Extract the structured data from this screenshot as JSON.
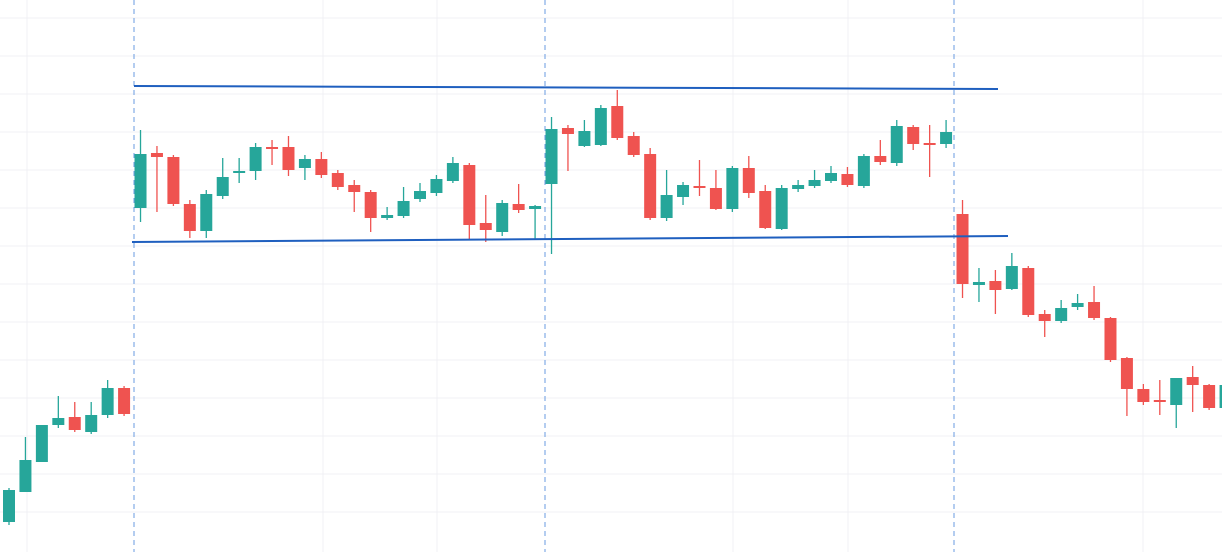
{
  "chart_data": {
    "type": "candlestick",
    "up_color": "#26a69a",
    "down_color": "#ef5350",
    "ylim": [
      0,
      552
    ],
    "open": [
      30,
      60,
      90,
      127,
      135,
      120,
      137,
      164,
      344,
      399,
      395,
      348,
      321,
      356,
      379,
      381,
      405,
      405,
      384,
      393,
      379,
      367,
      360,
      334,
      336,
      353,
      359,
      371,
      387,
      329,
      320,
      348,
      343,
      368,
      424,
      406,
      407,
      446,
      416,
      398,
      334,
      355,
      366,
      364,
      343,
      384,
      361,
      323,
      363,
      366,
      371,
      378,
      366,
      396,
      389,
      425,
      409,
      408,
      338,
      267,
      271,
      263,
      284,
      238,
      231,
      245,
      250,
      234,
      194,
      163,
      152,
      147,
      175,
      167,
      144
    ],
    "high": [
      64,
      115,
      127,
      156,
      150,
      150,
      172,
      166,
      422,
      406,
      397,
      352,
      362,
      394,
      394,
      409,
      412,
      416,
      397,
      400,
      382,
      372,
      362,
      345,
      365,
      369,
      377,
      395,
      389,
      357,
      352,
      368,
      347,
      435,
      427,
      432,
      447,
      462,
      420,
      404,
      382,
      370,
      392,
      382,
      386,
      396,
      367,
      367,
      372,
      382,
      386,
      385,
      398,
      412,
      432,
      427,
      427,
      432,
      352,
      284,
      282,
      299,
      286,
      242,
      252,
      258,
      266,
      235,
      195,
      168,
      172,
      174,
      186,
      168,
      169
    ],
    "low": [
      27,
      60,
      90,
      124,
      120,
      118,
      134,
      136,
      330,
      340,
      346,
      314,
      314,
      353,
      369,
      372,
      387,
      376,
      372,
      374,
      362,
      340,
      320,
      332,
      334,
      350,
      356,
      369,
      312,
      310,
      316,
      339,
      312,
      298,
      381,
      405,
      406,
      412,
      395,
      332,
      331,
      347,
      356,
      342,
      340,
      354,
      323,
      322,
      360,
      364,
      369,
      365,
      364,
      387,
      386,
      402,
      375,
      404,
      254,
      250,
      238,
      262,
      235,
      215,
      229,
      242,
      232,
      190,
      136,
      147,
      137,
      124,
      140,
      142,
      142
    ],
    "close": [
      62,
      92,
      127,
      134,
      122,
      137,
      164,
      138,
      398,
      395,
      348,
      321,
      358,
      375,
      381,
      405,
      403,
      382,
      393,
      377,
      365,
      360,
      334,
      337,
      351,
      361,
      373,
      389,
      327,
      322,
      349,
      342,
      346,
      423,
      418,
      421,
      444,
      414,
      397,
      334,
      357,
      367,
      364,
      343,
      384,
      359,
      324,
      364,
      367,
      372,
      379,
      367,
      396,
      390,
      426,
      408,
      407,
      420,
      268,
      270,
      262,
      286,
      237,
      231,
      244,
      249,
      234,
      192,
      163,
      150,
      150,
      174,
      167,
      144,
      167
    ]
  }
}
